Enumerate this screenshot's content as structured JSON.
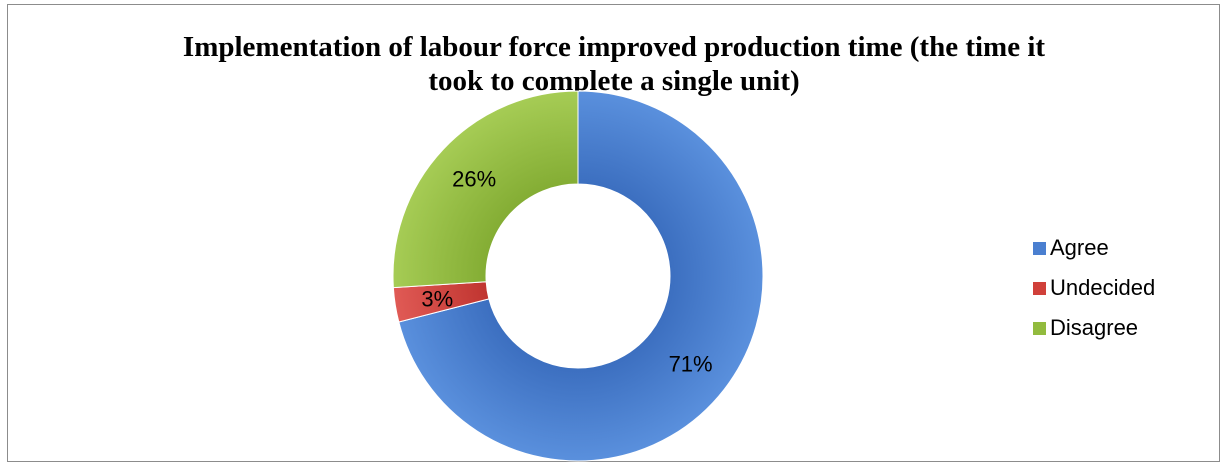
{
  "chart_data": {
    "type": "pie",
    "subtype": "doughnut",
    "title": "Implementation of labour force improved production time (the time it\ntook to complete a single unit)",
    "categories": [
      "Agree",
      "Undecided",
      "Disagree"
    ],
    "values": [
      71,
      3,
      26
    ],
    "data_labels": [
      "71%",
      "3%",
      "26%"
    ],
    "colors": [
      "#4a7fd0",
      "#d0403a",
      "#92bb3e"
    ],
    "legend_position": "right"
  }
}
